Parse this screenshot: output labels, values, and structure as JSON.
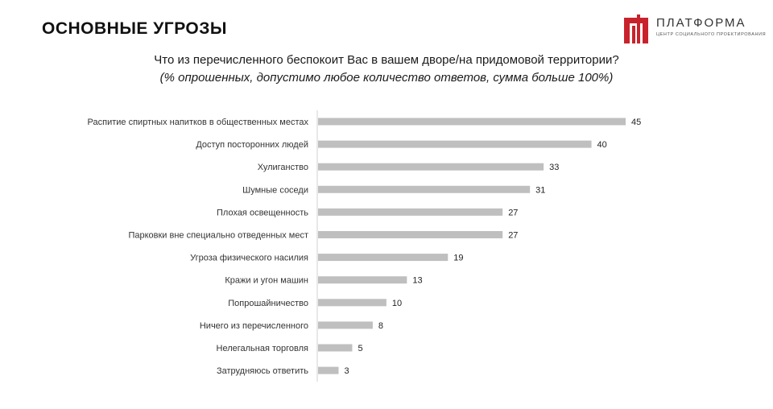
{
  "header": {
    "title": "ОСНОВНЫЕ УГРОЗЫ",
    "logo_name": "ПЛАТФОРМА",
    "logo_subtitle": "ЦЕНТР СОЦИАЛЬНОГО ПРОЕКТИРОВАНИЯ",
    "logo_color": "#c8232c"
  },
  "chart_data": {
    "type": "bar",
    "orientation": "horizontal",
    "title": "Что из перечисленного беспокоит Вас в вашем дворе/на придомовой территории?",
    "subtitle": "(% опрошенных, допустимо любое количество ответов, сумма больше 100%)",
    "categories": [
      "Распитие спиртных напитков в общественных местах",
      "Доступ посторонних людей",
      "Хулиганство",
      "Шумные соседи",
      "Плохая освещенность",
      "Парковки вне специально отведенных мест",
      "Угроза физического насилия",
      "Кражи и угон машин",
      "Попрошайничество",
      "Ничего из перечисленного",
      "Нелегальная торговля",
      "Затрудняюсь ответить"
    ],
    "values": [
      45,
      40,
      33,
      31,
      27,
      27,
      19,
      13,
      10,
      8,
      5,
      3
    ],
    "xlim": [
      0,
      45
    ],
    "bar_color": "#bfbfbf",
    "grid": false,
    "legend": "none"
  }
}
